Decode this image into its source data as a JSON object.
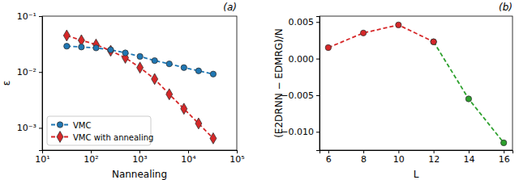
{
  "chart_data": [
    {
      "type": "line",
      "title": "(a)",
      "x_label": "Nannealing",
      "y_label": "ε",
      "log": true,
      "legend": "lower left",
      "x": [
        32,
        64,
        128,
        256,
        512,
        1024,
        2048,
        4096,
        8192,
        16384,
        32768
      ],
      "xlim": [
        10,
        100000
      ],
      "xticks": [
        {
          "value": 10,
          "label": "10¹"
        },
        {
          "value": 100,
          "label": "10²"
        },
        {
          "value": 1000,
          "label": "10³"
        },
        {
          "value": 10000,
          "label": "10⁴"
        },
        {
          "value": 100000,
          "label": "10⁵"
        }
      ],
      "ylim": [
        0.0004,
        0.1
      ],
      "yticks": [
        {
          "value": 0.001,
          "label": "10⁻³"
        },
        {
          "value": 0.01,
          "label": "10⁻²"
        },
        {
          "value": 0.1,
          "label": "10⁻¹"
        }
      ],
      "series": [
        {
          "name": "VMC",
          "color": "#1f77b4",
          "marker": "circle",
          "line_style": "dashed",
          "values": [
            0.029,
            0.028,
            0.027,
            0.025,
            0.022,
            0.019,
            0.016,
            0.014,
            0.012,
            0.0105,
            0.0092
          ]
        },
        {
          "name": "VMC with annealing",
          "color": "#d62728",
          "marker": "diamond",
          "line_style": "dashed",
          "values": [
            0.045,
            0.037,
            0.031,
            0.024,
            0.018,
            0.012,
            0.0075,
            0.004,
            0.0022,
            0.0012,
            0.00065
          ]
        }
      ]
    },
    {
      "type": "line",
      "title": "(b)",
      "x_label": "L",
      "y_label": "(E2DRNN − EDMRG)/N",
      "x": [
        6,
        8,
        10,
        12,
        14,
        16
      ],
      "xlim": [
        5.5,
        16.5
      ],
      "xticks": [
        6,
        8,
        10,
        12,
        14,
        16
      ],
      "ylim": [
        -0.0125,
        0.0058
      ],
      "yticks": [
        {
          "value": -0.01,
          "label": "−0.010"
        },
        {
          "value": -0.005,
          "label": "−0.005"
        },
        {
          "value": 0,
          "label": "0.000"
        },
        0.005
      ],
      "series": [
        {
          "color": "#d62728",
          "marker": "circle",
          "line_style": "dashed",
          "values": [
            0.0015,
            0.0035,
            0.0046,
            0.0023,
            null,
            null
          ]
        },
        {
          "color": "#2ca02c",
          "marker": "circle",
          "line_style": "dashed",
          "values": [
            null,
            null,
            null,
            0.0023,
            -0.0055,
            -0.0115
          ]
        }
      ]
    }
  ]
}
